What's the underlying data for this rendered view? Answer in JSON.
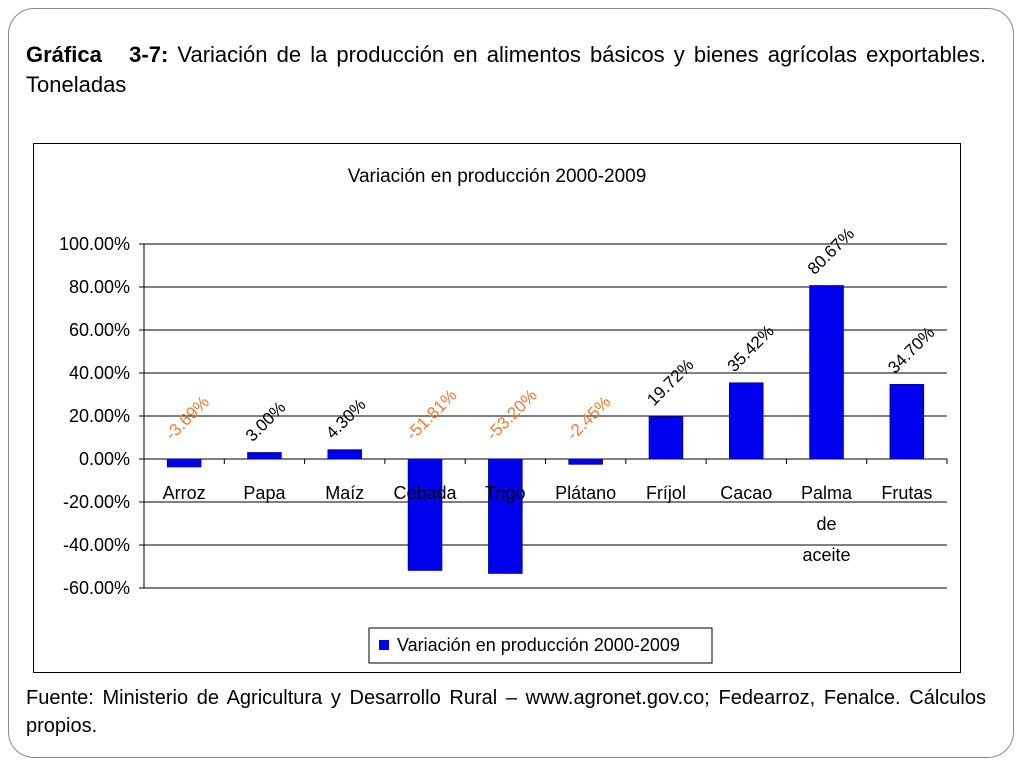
{
  "heading": {
    "label": "Gráfica",
    "number": "3-7:",
    "text": "Variación de la producción en alimentos básicos y bienes agrícolas exportables. Toneladas"
  },
  "source": {
    "text": "Fuente: Ministerio de Agricultura y Desarrollo Rural – www.agronet.gov.co; Fedearroz, Fenalce. Cálculos propios."
  },
  "colors": {
    "bar": "#0000ee",
    "negative_label": "#f07b3a",
    "positive_label": "#000000"
  },
  "chart_data": {
    "type": "bar",
    "title": "Variación en producción 2000-2009",
    "categories": [
      "Arroz",
      "Papa",
      "Maíz",
      "Cebada",
      "Trigo",
      "Plátano",
      "Fríjol",
      "Cacao",
      "Palma de aceite",
      "Frutas"
    ],
    "series": [
      {
        "name": "Variación en producción 2000-2009",
        "values": [
          -3.69,
          3.0,
          4.3,
          -51.81,
          -53.2,
          -2.45,
          19.72,
          35.42,
          80.67,
          34.7
        ]
      }
    ],
    "data_labels": [
      "-3.69%",
      "3.00%",
      "4.30%",
      "-51.81%",
      "-53.20%",
      "-2.45%",
      "19.72%",
      "35.42%",
      "80.67%",
      "34.70%"
    ],
    "ylim": [
      -60,
      100
    ],
    "yticks": [
      100,
      80,
      60,
      40,
      20,
      0,
      -20,
      -40,
      -60
    ],
    "ytick_labels": [
      "100.00%",
      "80.00%",
      "60.00%",
      "40.00%",
      "20.00%",
      "0.00%",
      "-20.00%",
      "-40.00%",
      "-60.00%"
    ],
    "grid": true,
    "legend_position": "bottom"
  }
}
